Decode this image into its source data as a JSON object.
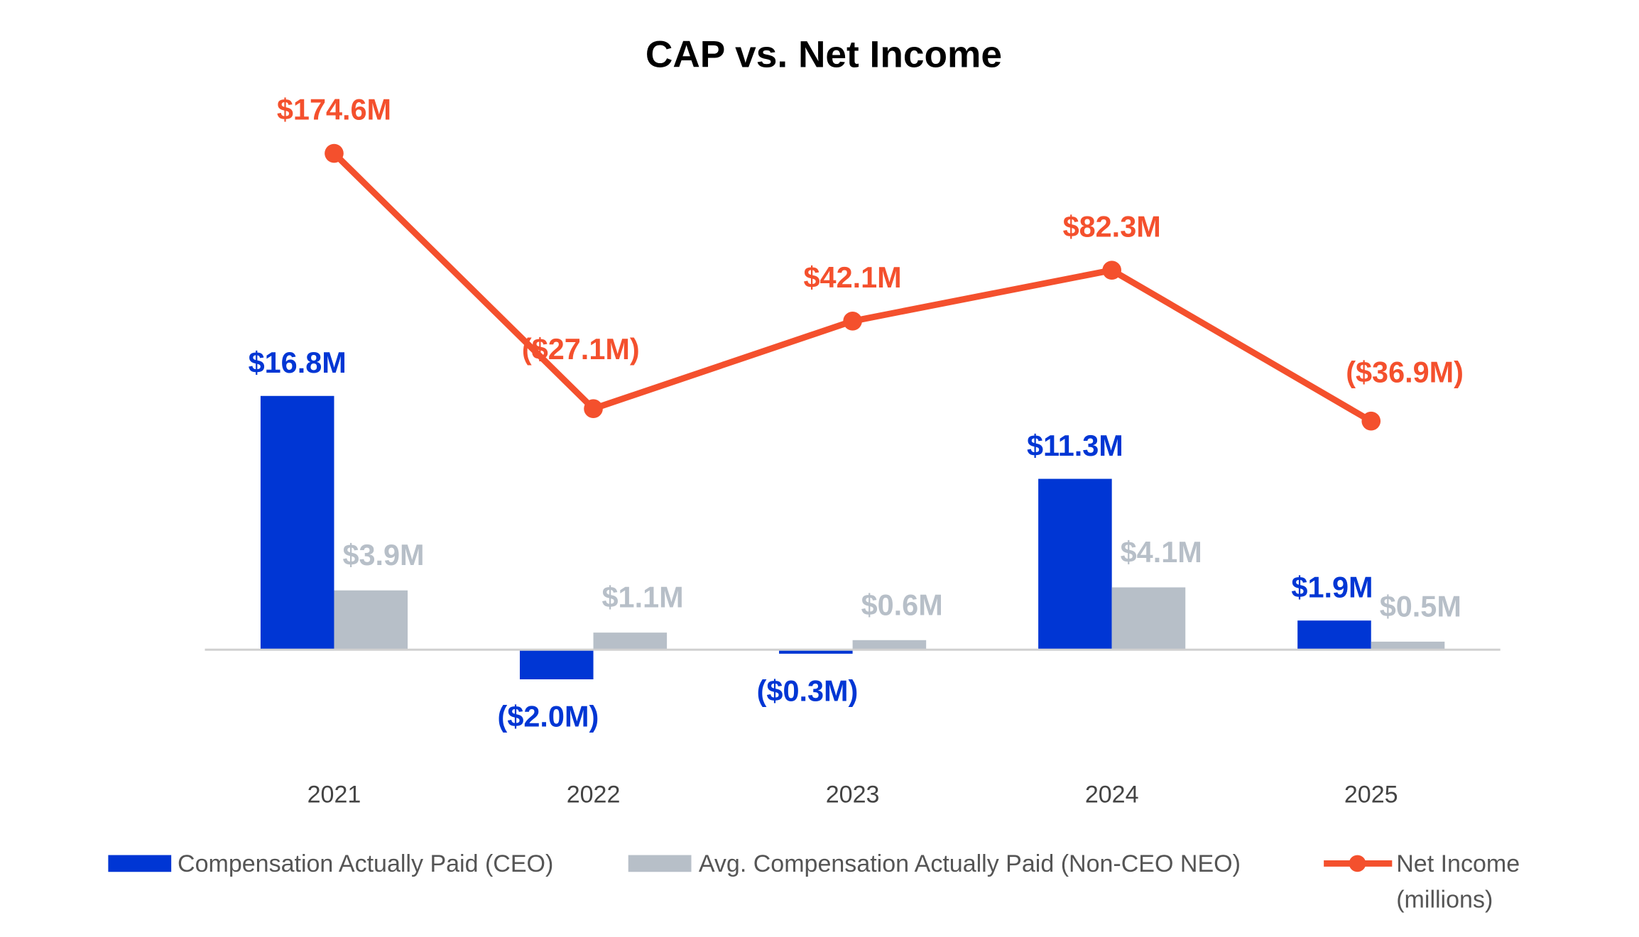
{
  "chart_data": {
    "type": "bar",
    "title": "CAP vs. Net Income",
    "categories": [
      "2021",
      "2022",
      "2023",
      "2024",
      "2025"
    ],
    "series": [
      {
        "name": "Compensation Actually Paid (CEO)",
        "type": "bar",
        "color": "#0036D4",
        "values": [
          16.8,
          -2.0,
          -0.3,
          11.3,
          1.9
        ],
        "labels": [
          "$16.8M",
          "($2.0M)",
          "($0.3M)",
          "$11.3M",
          "$1.9M"
        ]
      },
      {
        "name": "Avg. Compensation Actually Paid (Non-CEO NEO)",
        "type": "bar",
        "color": "#B7BFC8",
        "values": [
          3.9,
          1.1,
          0.6,
          4.1,
          0.5
        ],
        "labels": [
          "$3.9M",
          "$1.1M",
          "$0.6M",
          "$4.1M",
          "$0.5M"
        ]
      },
      {
        "name": "Net Income",
        "name_line2": "(millions)",
        "type": "line",
        "axis": "secondary",
        "color": "#F4502D",
        "values": [
          174.6,
          -27.1,
          42.1,
          82.3,
          -36.9
        ],
        "labels": [
          "$174.6M",
          "($27.1M)",
          "$42.1M",
          "$82.3M",
          "($36.9M)"
        ]
      }
    ],
    "legend_position": "bottom",
    "grid": false
  }
}
